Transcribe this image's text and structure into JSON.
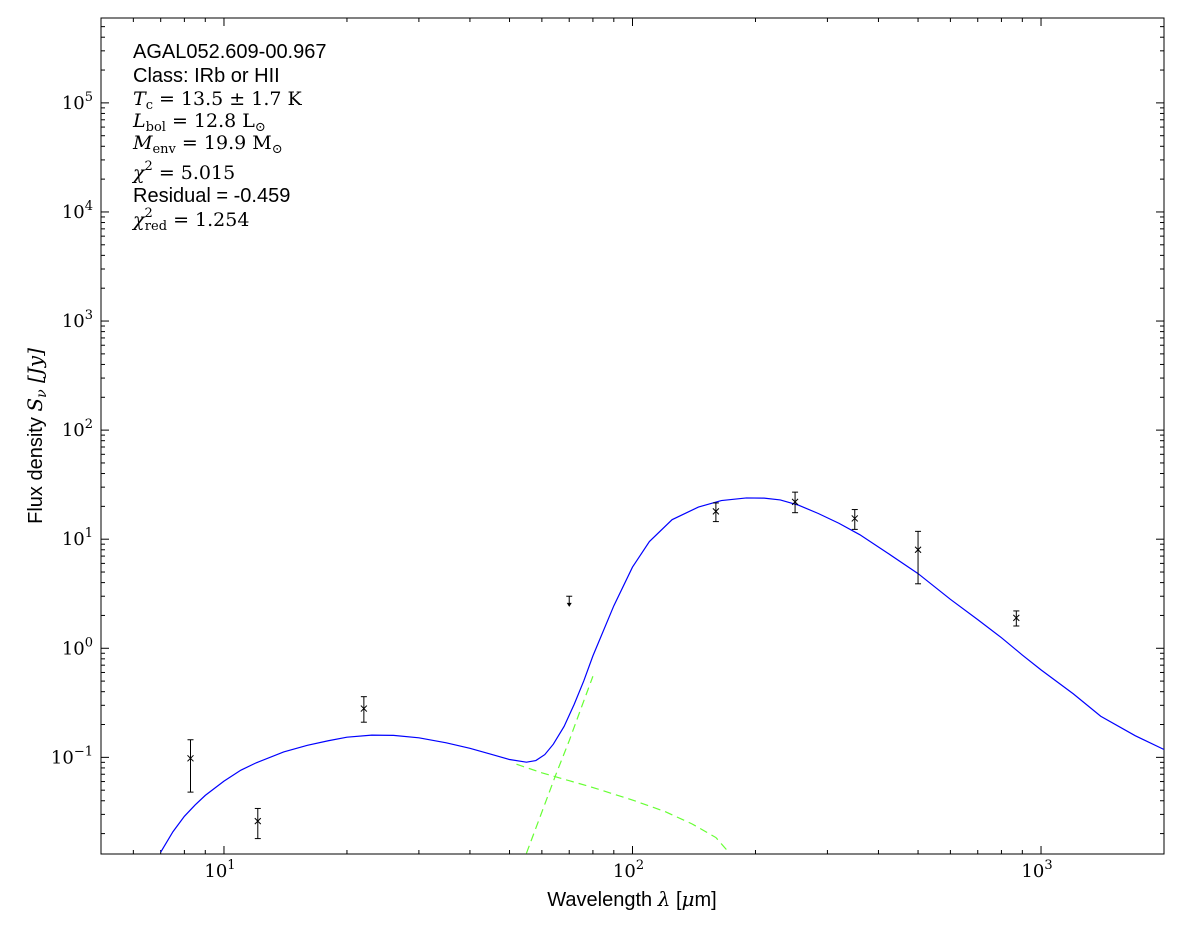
{
  "chart_data": {
    "type": "scatter",
    "annotations": {
      "source": "AGAL052.609-00.967",
      "class_label": "Class: IRb or HII",
      "tc_sym": "T",
      "tc_sub": "c",
      "tc_val": " = 13.5 ± 1.7 K",
      "lbol_sym": "L",
      "lbol_sub": "bol",
      "lbol_val": " = 12.8 L",
      "lbol_unit_sub": "⊙",
      "menv_sym": "M",
      "menv_sub": "env",
      "menv_val": " = 19.9 M",
      "menv_unit_sub": "⊙",
      "chi2_sym": "χ",
      "chi2_sup": "2",
      "chi2_val": " = 5.015",
      "residual": "Residual = -0.459",
      "chired_sym": "χ",
      "chired_sup": "2",
      "chired_sub": "red",
      "chired_val": " = 1.254"
    },
    "xlabel_text": "Wavelength ",
    "xlabel_sym": "λ",
    "xlabel_unit_pre": " [",
    "xlabel_unit_mu": "μ",
    "xlabel_unit_post": "m]",
    "ylabel_text": "Flux density ",
    "ylabel_sym": "S",
    "ylabel_sub": "ν",
    "ylabel_unit": " [Jy]",
    "xscale": "log",
    "yscale": "log",
    "xlim": [
      5.0,
      2000
    ],
    "ylim": [
      0.013,
      600000
    ],
    "x_ticks": [
      {
        "value": 10,
        "base": "10",
        "exp": "1"
      },
      {
        "value": 100,
        "base": "10",
        "exp": "2"
      },
      {
        "value": 1000,
        "base": "10",
        "exp": "3"
      }
    ],
    "y_ticks": [
      {
        "value": 0.1,
        "base": "10",
        "exp": "−1"
      },
      {
        "value": 1,
        "base": "10",
        "exp": "0"
      },
      {
        "value": 10,
        "base": "10",
        "exp": "1"
      },
      {
        "value": 100,
        "base": "10",
        "exp": "2"
      },
      {
        "value": 1000,
        "base": "10",
        "exp": "3"
      },
      {
        "value": 10000,
        "base": "10",
        "exp": "4"
      },
      {
        "value": 100000,
        "base": "10",
        "exp": "5"
      }
    ],
    "series": [
      {
        "kind": "points",
        "marker": "x",
        "color": "#000000",
        "points": [
          {
            "x": 8.28,
            "y": 0.098,
            "ylo": 0.048,
            "yhi": 0.145
          },
          {
            "x": 12.1,
            "y": 0.026,
            "ylo": 0.018,
            "yhi": 0.034
          },
          {
            "x": 22.0,
            "y": 0.28,
            "ylo": 0.21,
            "yhi": 0.36
          },
          {
            "x": 160,
            "y": 18.0,
            "ylo": 14.5,
            "yhi": 21.5
          },
          {
            "x": 250,
            "y": 22.0,
            "ylo": 17.5,
            "yhi": 27.0
          },
          {
            "x": 350,
            "y": 15.5,
            "ylo": 12.3,
            "yhi": 18.7
          },
          {
            "x": 500,
            "y": 8.0,
            "ylo": 3.9,
            "yhi": 11.8
          },
          {
            "x": 870,
            "y": 1.9,
            "ylo": 1.6,
            "yhi": 2.2
          }
        ]
      },
      {
        "kind": "upper_limit",
        "color": "#000000",
        "points": [
          {
            "x": 70,
            "y": 3.0,
            "y_arrow": 2.45
          }
        ]
      },
      {
        "kind": "line",
        "style": "solid",
        "color": "#0000ff",
        "x": [
          7.0,
          7.5,
          8.0,
          8.5,
          9.0,
          10.0,
          11.0,
          12.0,
          14.0,
          16.0,
          18.0,
          20.0,
          23.0,
          26.0,
          30.0,
          35.0,
          40.0,
          45.0,
          50.0,
          55.0,
          58.0,
          61.0,
          64.0,
          68.0,
          72.0,
          76.0,
          80.0,
          90.0,
          100.0,
          110.0,
          125.0,
          145.0,
          165.0,
          190.0,
          210.0,
          230.0,
          255.0,
          285.0,
          320.0,
          360.0,
          420.0,
          500.0,
          600.0,
          700.0,
          800.0,
          900.0,
          1000.0,
          1200.0,
          1400.0,
          1700.0,
          2000.0
        ],
        "y": [
          0.0135,
          0.0208,
          0.0288,
          0.0366,
          0.0448,
          0.0605,
          0.0763,
          0.0892,
          0.112,
          0.129,
          0.142,
          0.153,
          0.16,
          0.159,
          0.151,
          0.136,
          0.121,
          0.107,
          0.0955,
          0.0903,
          0.0935,
          0.106,
          0.132,
          0.192,
          0.307,
          0.503,
          0.852,
          2.45,
          5.55,
          9.52,
          15.1,
          19.7,
          22.6,
          23.9,
          23.8,
          22.9,
          20.5,
          17.2,
          14.0,
          11.0,
          7.52,
          4.84,
          2.81,
          1.83,
          1.25,
          0.867,
          0.634,
          0.382,
          0.238,
          0.158,
          0.118
        ]
      },
      {
        "kind": "line",
        "style": "dashed",
        "color": "#66ff33",
        "x": [
          52.0,
          60.0,
          70.0,
          80.0,
          100.0,
          120.0,
          140.0,
          160.0,
          170.0
        ],
        "y": [
          0.0865,
          0.0722,
          0.0611,
          0.0529,
          0.0406,
          0.0319,
          0.0245,
          0.0184,
          0.0142
        ]
      },
      {
        "kind": "line",
        "style": "dashed",
        "color": "#66ff33",
        "x": [
          55.0,
          60.0,
          65.0,
          70.0,
          75.0,
          80.0
        ],
        "y": [
          0.0132,
          0.0315,
          0.0703,
          0.142,
          0.288,
          0.554
        ]
      }
    ]
  }
}
